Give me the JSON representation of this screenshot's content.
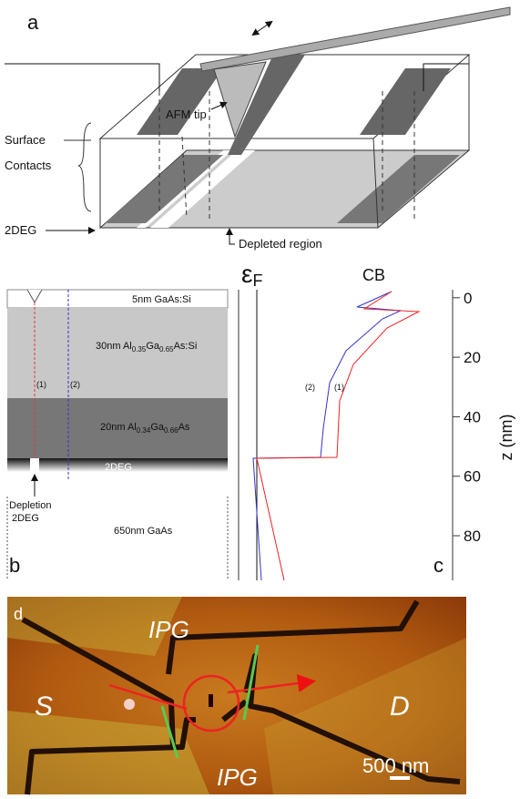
{
  "panel_a": {
    "label": "a",
    "afm_tip": "AFM tip",
    "surface": "Surface",
    "contacts": "Contacts",
    "twodeg": "2DEG",
    "depleted": "Depleted region"
  },
  "panel_b": {
    "label": "b",
    "layers": [
      [
        "5nm GaAs:Si"
      ],
      [
        "30nm Al",
        "0.35",
        "Ga",
        "0.65",
        "As:Si"
      ],
      [
        "20nm Al",
        "0.34",
        "Ga",
        "0.66",
        "As"
      ],
      [
        "2DEG"
      ],
      [
        "650nm GaAs"
      ]
    ],
    "line_1": "(1)",
    "line_2": "(2)",
    "depletion": [
      "Depletion",
      "2DEG"
    ]
  },
  "panel_c": {
    "label": "c",
    "fermi": [
      "ε",
      "F"
    ],
    "band": "CB",
    "curve_2": "(2)",
    "curve_1": "(1)",
    "ylabel": "z (nm)",
    "zlim": [
      -3,
      95
    ],
    "zticks": [
      0,
      20,
      40,
      60,
      80
    ]
  },
  "panel_d": {
    "label": "d",
    "gate_top": "IPG",
    "source": "S",
    "drain": "D",
    "gate_bottom": "IPG",
    "scale": "500 nm"
  }
}
